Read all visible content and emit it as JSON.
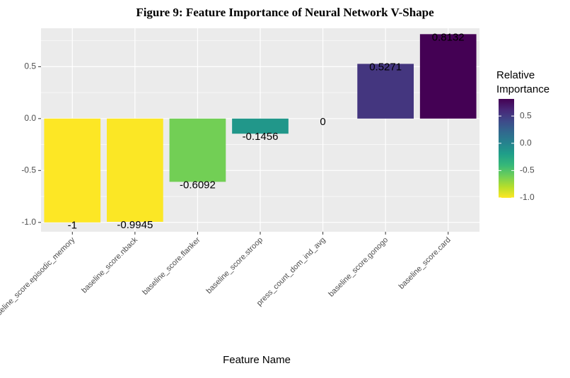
{
  "chart_data": {
    "type": "bar",
    "title": "Figure 9: Feature Importance of Neural Network V-Shape",
    "xlabel": "Feature Name",
    "ylabel": "",
    "categories": [
      "baseline_score.episodic_memory",
      "baseline_score.nback",
      "baseline_score.flanker",
      "baseline_score.stroop",
      "press_count_dom_ind_avg",
      "baseline_score.gonogo",
      "baseline_score.card"
    ],
    "values": [
      -1,
      -0.9945,
      -0.6092,
      -0.1456,
      0,
      0.5271,
      0.8132
    ],
    "value_labels": [
      "-1",
      "-0.9945",
      "-0.6092",
      "-0.1456",
      "0",
      "0.5271",
      "0.8132"
    ],
    "ylim": [
      -1.09,
      0.87
    ],
    "yticks": [
      -1.0,
      -0.5,
      0.0,
      0.5
    ],
    "ytick_labels": [
      "-1.0",
      "-0.5",
      "0.0",
      "0.5"
    ],
    "grid": true,
    "legend": {
      "title_lines": [
        "Relative",
        "Importance"
      ],
      "position": "right",
      "ticks": [
        0.5,
        0.0,
        -0.5,
        -1.0
      ],
      "tick_labels": [
        "0.5",
        "0.0",
        "-0.5",
        "-1.0"
      ],
      "range": [
        -1.0,
        0.8132
      ]
    },
    "colors": {
      "panel": "#ebebeb",
      "gridline": "#ffffff",
      "viridis": [
        "#440154",
        "#482878",
        "#3e4989",
        "#31688e",
        "#26828e",
        "#1f9e89",
        "#35b779",
        "#6ece58",
        "#b5de2b",
        "#fde725"
      ]
    }
  }
}
